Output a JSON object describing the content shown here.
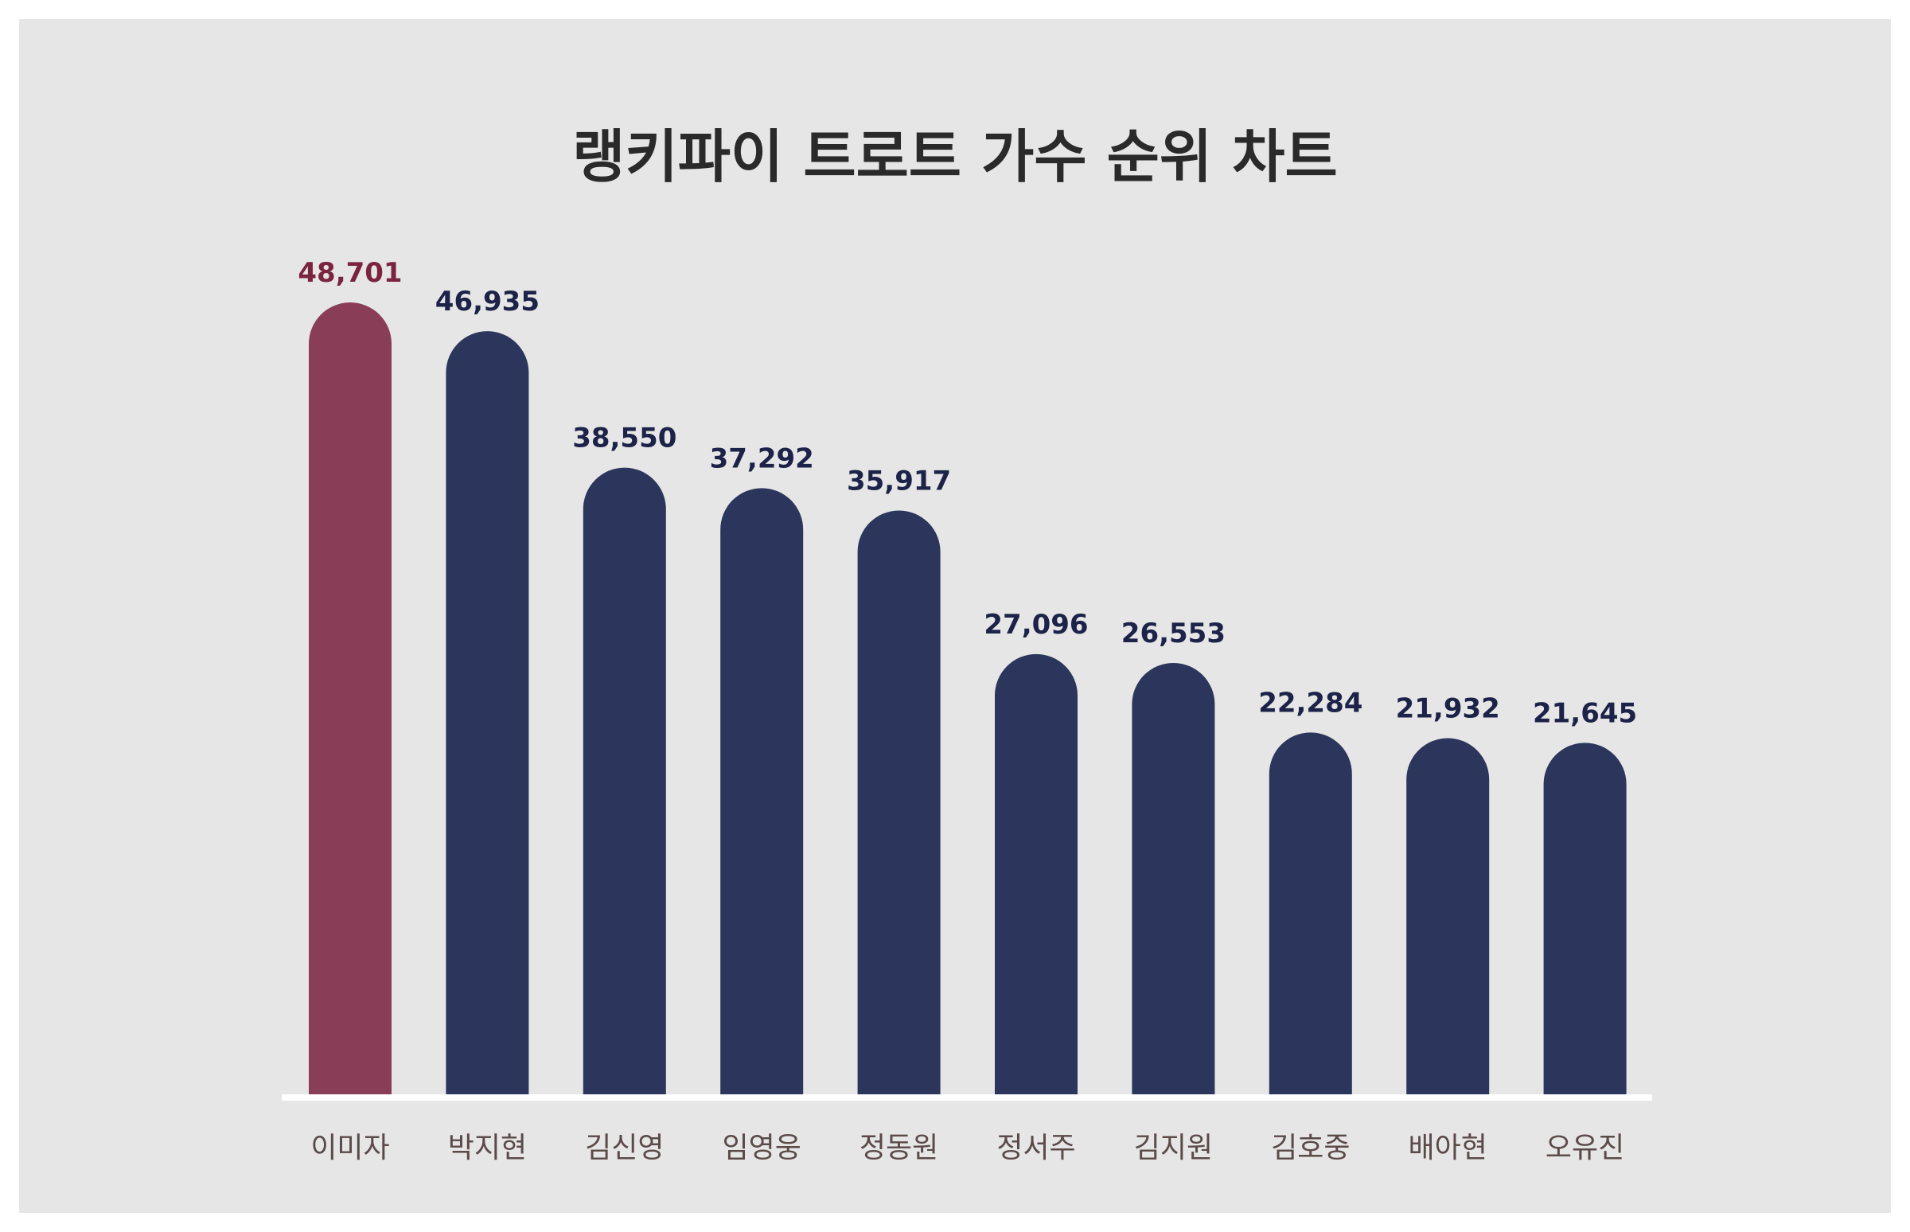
{
  "chart_data": {
    "type": "bar",
    "title": "랭키파이 트로트 가수 순위 차트",
    "categories": [
      "이미자",
      "박지현",
      "김신영",
      "임영웅",
      "정동원",
      "정서주",
      "김지원",
      "김호중",
      "배아현",
      "오유진"
    ],
    "values": [
      48701,
      46935,
      38550,
      37292,
      35917,
      27096,
      26553,
      22284,
      21932,
      21645
    ],
    "value_labels": [
      "48,701",
      "46,935",
      "38,550",
      "37,292",
      "35,917",
      "27,096",
      "26,553",
      "22,284",
      "21,932",
      "21,645"
    ],
    "xlabel": "",
    "ylabel": "",
    "ylim": [
      0,
      48701
    ],
    "grid": false,
    "legend": "none",
    "colors": {
      "highlight": "#8a3d57",
      "highlight_label": "#7a2440",
      "bar": "#2c365c",
      "bar_label": "#1c2248",
      "background": "#e6e6e6",
      "baseline": "#ffffff",
      "category_text": "#5a4a48",
      "title_text": "#2a2a2a"
    }
  }
}
